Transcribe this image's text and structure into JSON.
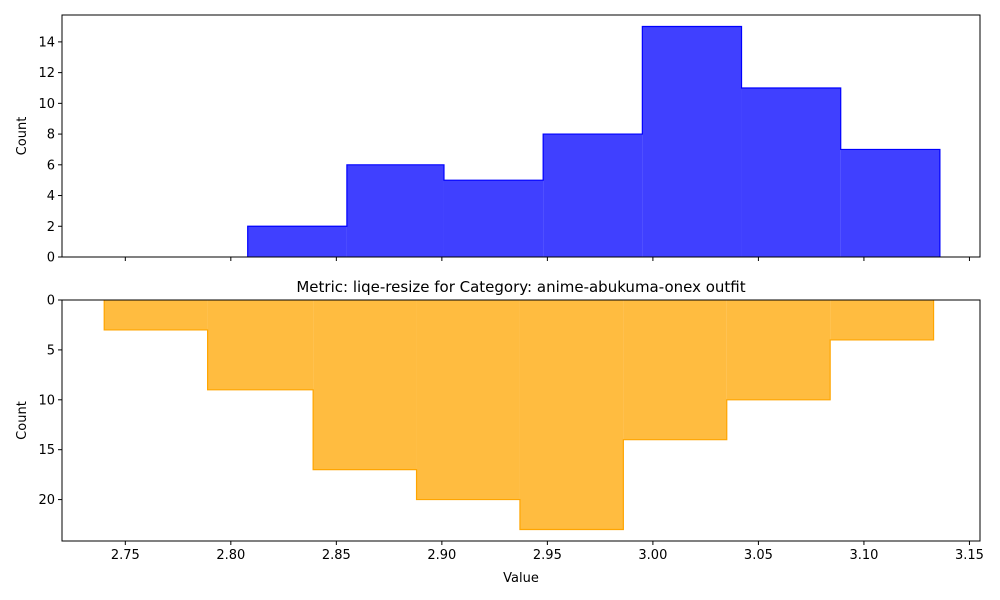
{
  "chart_data": [
    {
      "type": "histogram",
      "style": "step-filled",
      "title": "",
      "xlabel": "",
      "ylabel": "Count",
      "xlim": [
        2.72,
        3.155
      ],
      "ylim": [
        0,
        15.75
      ],
      "y_inverted": false,
      "x_ticks": [
        2.75,
        2.8,
        2.85,
        2.9,
        2.95,
        3.0,
        3.05,
        3.1,
        3.15
      ],
      "x_tick_labels_visible": false,
      "y_ticks": [
        0,
        2,
        4,
        6,
        8,
        10,
        12,
        14
      ],
      "y_tick_labels": [
        "0",
        "2",
        "4",
        "6",
        "8",
        "10",
        "12",
        "14"
      ],
      "fill_color": "#0000ff",
      "edge_color": "#0000ff",
      "bins": [
        {
          "x0": 2.808,
          "x1": 2.855,
          "count": 2
        },
        {
          "x0": 2.855,
          "x1": 2.901,
          "count": 6
        },
        {
          "x0": 2.901,
          "x1": 2.948,
          "count": 5
        },
        {
          "x0": 2.948,
          "x1": 2.995,
          "count": 8
        },
        {
          "x0": 2.995,
          "x1": 3.042,
          "count": 15
        },
        {
          "x0": 3.042,
          "x1": 3.089,
          "count": 11
        },
        {
          "x0": 3.089,
          "x1": 3.136,
          "count": 7
        }
      ]
    },
    {
      "type": "histogram",
      "style": "step-filled",
      "title": "Metric: liqe-resize for Category: anime-abukuma-onex outfit",
      "xlabel": "Value",
      "ylabel": "Count",
      "xlim": [
        2.72,
        3.155
      ],
      "ylim": [
        0,
        24.15
      ],
      "y_inverted": true,
      "x_ticks": [
        2.75,
        2.8,
        2.85,
        2.9,
        2.95,
        3.0,
        3.05,
        3.1,
        3.15
      ],
      "x_tick_labels": [
        "2.75",
        "2.80",
        "2.85",
        "2.90",
        "2.95",
        "3.00",
        "3.05",
        "3.10",
        "3.15"
      ],
      "x_tick_labels_visible": true,
      "y_ticks": [
        0,
        5,
        10,
        15,
        20
      ],
      "y_tick_labels": [
        "0",
        "5",
        "10",
        "15",
        "20"
      ],
      "fill_color": "#ffa500",
      "edge_color": "#ffa500",
      "bins": [
        {
          "x0": 2.74,
          "x1": 2.789,
          "count": 3
        },
        {
          "x0": 2.789,
          "x1": 2.839,
          "count": 9
        },
        {
          "x0": 2.839,
          "x1": 2.888,
          "count": 17
        },
        {
          "x0": 2.888,
          "x1": 2.937,
          "count": 20
        },
        {
          "x0": 2.937,
          "x1": 2.986,
          "count": 23
        },
        {
          "x0": 2.986,
          "x1": 3.035,
          "count": 14
        },
        {
          "x0": 3.035,
          "x1": 3.084,
          "count": 10
        },
        {
          "x0": 3.084,
          "x1": 3.133,
          "count": 4
        }
      ]
    }
  ]
}
